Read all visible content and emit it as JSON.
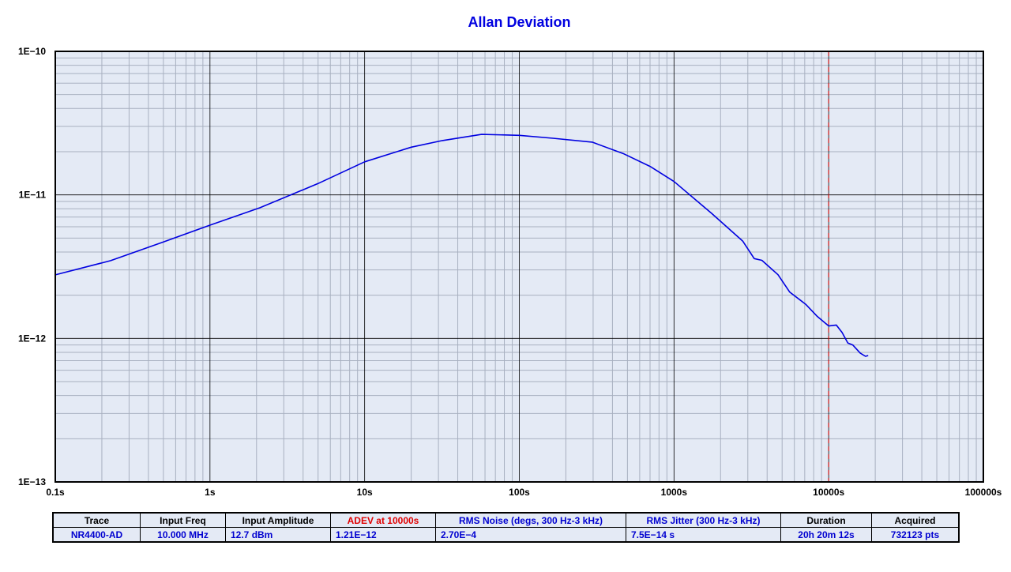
{
  "chart_data": {
    "type": "line",
    "title": "Allan Deviation",
    "xscale": "log",
    "yscale": "log",
    "xlim": [
      0.1,
      100000
    ],
    "ylim": [
      1e-13,
      1e-10
    ],
    "xticks": [
      {
        "v": 0.1,
        "label": "0.1s"
      },
      {
        "v": 1,
        "label": "1s"
      },
      {
        "v": 10,
        "label": "10s"
      },
      {
        "v": 100,
        "label": "100s"
      },
      {
        "v": 1000,
        "label": "1000s"
      },
      {
        "v": 10000,
        "label": "10000s"
      },
      {
        "v": 100000,
        "label": "100000s"
      }
    ],
    "yticks": [
      {
        "v": 1e-10,
        "label": "1E−10"
      },
      {
        "v": 1e-11,
        "label": "1E−11"
      },
      {
        "v": 1e-12,
        "label": "1E−12"
      },
      {
        "v": 1e-13,
        "label": "1E−13"
      }
    ],
    "grid": true,
    "marker_x": 10000,
    "colors": {
      "line": "#0000e0",
      "marker": "#e00000",
      "bg": "#e4eaf5"
    },
    "series": [
      {
        "name": "NR4400-AD",
        "x": [
          0.1,
          0.228,
          0.5,
          1,
          2.1,
          5,
          10,
          20,
          31.8,
          57,
          100,
          165,
          296,
          475,
          700,
          1000,
          1750,
          2780,
          3300,
          3700,
          4700,
          5600,
          7100,
          8400,
          10000,
          11200,
          12200,
          13300,
          14300,
          16000,
          17300,
          18000
        ],
        "y": [
          2.77e-12,
          3.48e-12,
          4.7e-12,
          6.15e-12,
          8.13e-12,
          1.2e-11,
          1.7e-11,
          2.15e-11,
          2.39e-11,
          2.64e-11,
          2.6e-11,
          2.48e-11,
          2.33e-11,
          1.93e-11,
          1.58e-11,
          1.24e-11,
          7.44e-12,
          4.77e-12,
          3.6e-12,
          3.5e-12,
          2.78e-12,
          2.1e-12,
          1.73e-12,
          1.43e-12,
          1.22e-12,
          1.24e-12,
          1.1e-12,
          9.3e-13,
          9e-13,
          7.9e-13,
          7.5e-13,
          7.6e-13
        ]
      }
    ]
  },
  "table": {
    "headers": [
      "Trace",
      "Input Freq",
      "Input Amplitude",
      "ADEV at 10000s",
      "RMS Noise (degs, 300 Hz-3 kHz)",
      "RMS Jitter (300 Hz-3 kHz)",
      "Duration",
      "Acquired"
    ],
    "row": [
      "NR4400-AD",
      "10.000 MHz",
      "12.7 dBm",
      "1.21E−12",
      "2.70E−4",
      "7.5E−14 s",
      "20h 20m 12s",
      "732123 pts"
    ]
  }
}
